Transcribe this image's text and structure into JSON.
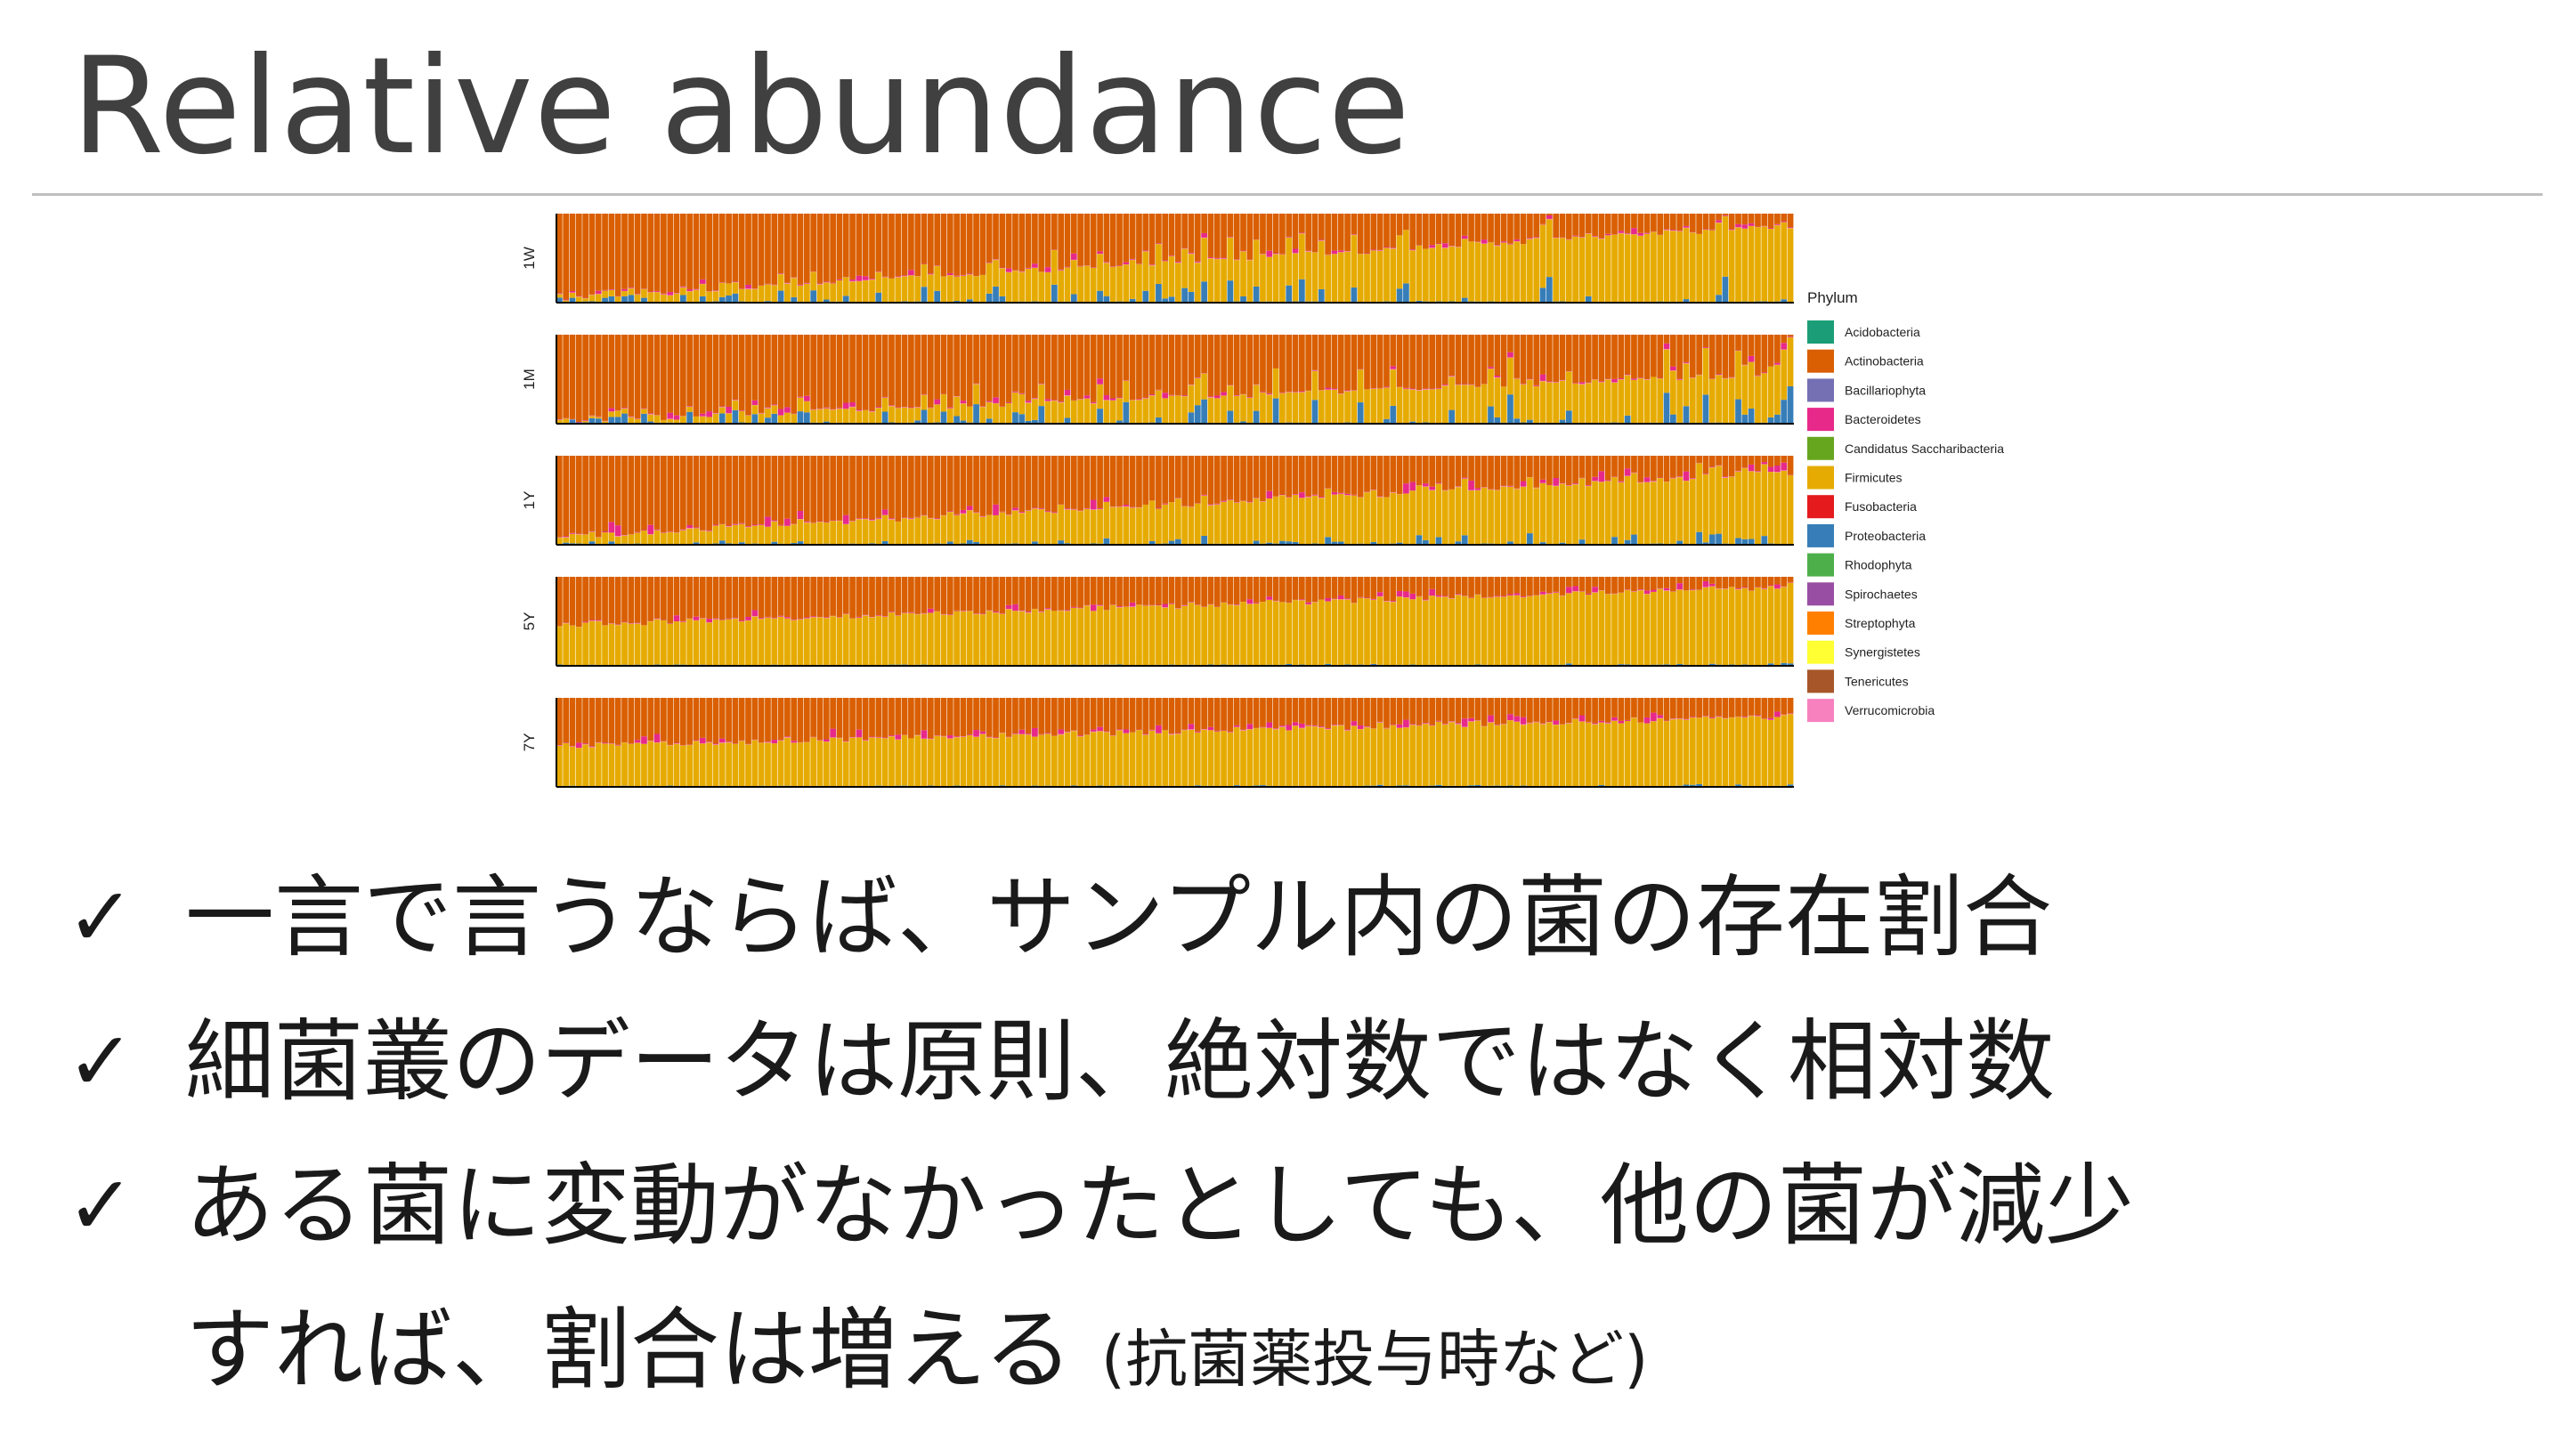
{
  "slide": {
    "title": "Relative abundance",
    "check_glyph": "✓",
    "bullets": [
      {
        "text": "一言で言うならば、サンプル内の菌の存在割合"
      },
      {
        "text": "細菌叢のデータは原則、絶対数ではなく相対数"
      },
      {
        "text": "ある菌に変動がなかったとしても、他の菌が減少"
      },
      {
        "text": "すれば、割合は増える",
        "note": "(抗菌薬投与時など)"
      }
    ]
  },
  "chart_data": {
    "type": "bar",
    "stacked": true,
    "normalized": true,
    "ylim": [
      0,
      1
    ],
    "facets": [
      {
        "label": "1W",
        "n_samples": 190,
        "firmicutes_start": 0.03,
        "firmicutes_end": 0.86,
        "proteobacteria_mean": 0.12,
        "bacteroidetes_mean": 0.03
      },
      {
        "label": "1M",
        "n_samples": 190,
        "firmicutes_start": 0.02,
        "firmicutes_end": 0.55,
        "proteobacteria_mean": 0.14,
        "bacteroidetes_mean": 0.03
      },
      {
        "label": "1Y",
        "n_samples": 190,
        "firmicutes_start": 0.08,
        "firmicutes_end": 0.8,
        "proteobacteria_mean": 0.05,
        "bacteroidetes_mean": 0.05
      },
      {
        "label": "5Y",
        "n_samples": 190,
        "firmicutes_start": 0.45,
        "firmicutes_end": 0.88,
        "proteobacteria_mean": 0.01,
        "bacteroidetes_mean": 0.03
      },
      {
        "label": "7Y",
        "n_samples": 190,
        "firmicutes_start": 0.45,
        "firmicutes_end": 0.78,
        "proteobacteria_mean": 0.01,
        "bacteroidetes_mean": 0.04
      }
    ],
    "legend": {
      "title": "Phylum",
      "placement": "right",
      "items": [
        {
          "name": "Acidobacteria",
          "color": "#1b9e77"
        },
        {
          "name": "Actinobacteria",
          "color": "#d95f02"
        },
        {
          "name": "Bacillariophyta",
          "color": "#7570b3"
        },
        {
          "name": "Bacteroidetes",
          "color": "#e7298a"
        },
        {
          "name": "Candidatus Saccharibacteria",
          "color": "#66a61e"
        },
        {
          "name": "Firmicutes",
          "color": "#e6ab02"
        },
        {
          "name": "Fusobacteria",
          "color": "#e41a1c"
        },
        {
          "name": "Proteobacteria",
          "color": "#377eb8"
        },
        {
          "name": "Rhodophyta",
          "color": "#4daf4a"
        },
        {
          "name": "Spirochaetes",
          "color": "#984ea3"
        },
        {
          "name": "Streptophyta",
          "color": "#ff7f00"
        },
        {
          "name": "Synergistetes",
          "color": "#ffff33"
        },
        {
          "name": "Tenericutes",
          "color": "#a65628"
        },
        {
          "name": "Verrucomicrobia",
          "color": "#f781bf"
        }
      ]
    }
  }
}
